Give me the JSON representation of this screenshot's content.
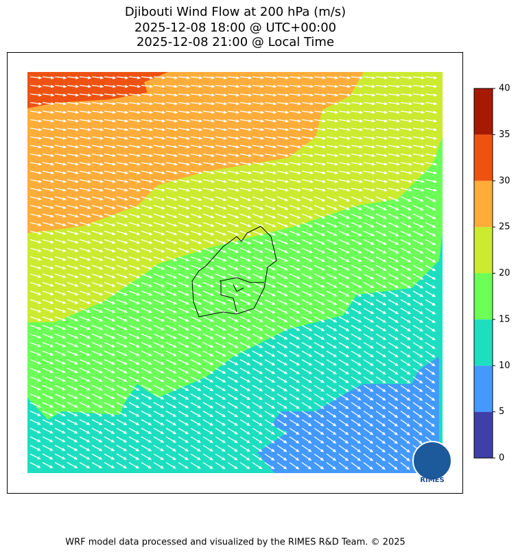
{
  "title": [
    "Djibouti Wind Flow at 200 hPa (m/s)",
    "2025-12-08 18:00 @ UTC+00:00",
    "2025-12-08 21:00 @ Local Time"
  ],
  "colorbar": {
    "lim": [
      0,
      40
    ],
    "ticks": [
      0,
      5,
      10,
      15,
      20,
      25,
      30,
      35,
      40
    ],
    "colors": [
      "#3f3fa8",
      "#4499ff",
      "#1ddfc0",
      "#6bff58",
      "#cbea30",
      "#ffad3a",
      "#ee5211",
      "#a61a03"
    ]
  },
  "logo": "RIMES",
  "footer": "WRF model data processed and visualized by the RIMES R&D Team. © 2025"
}
